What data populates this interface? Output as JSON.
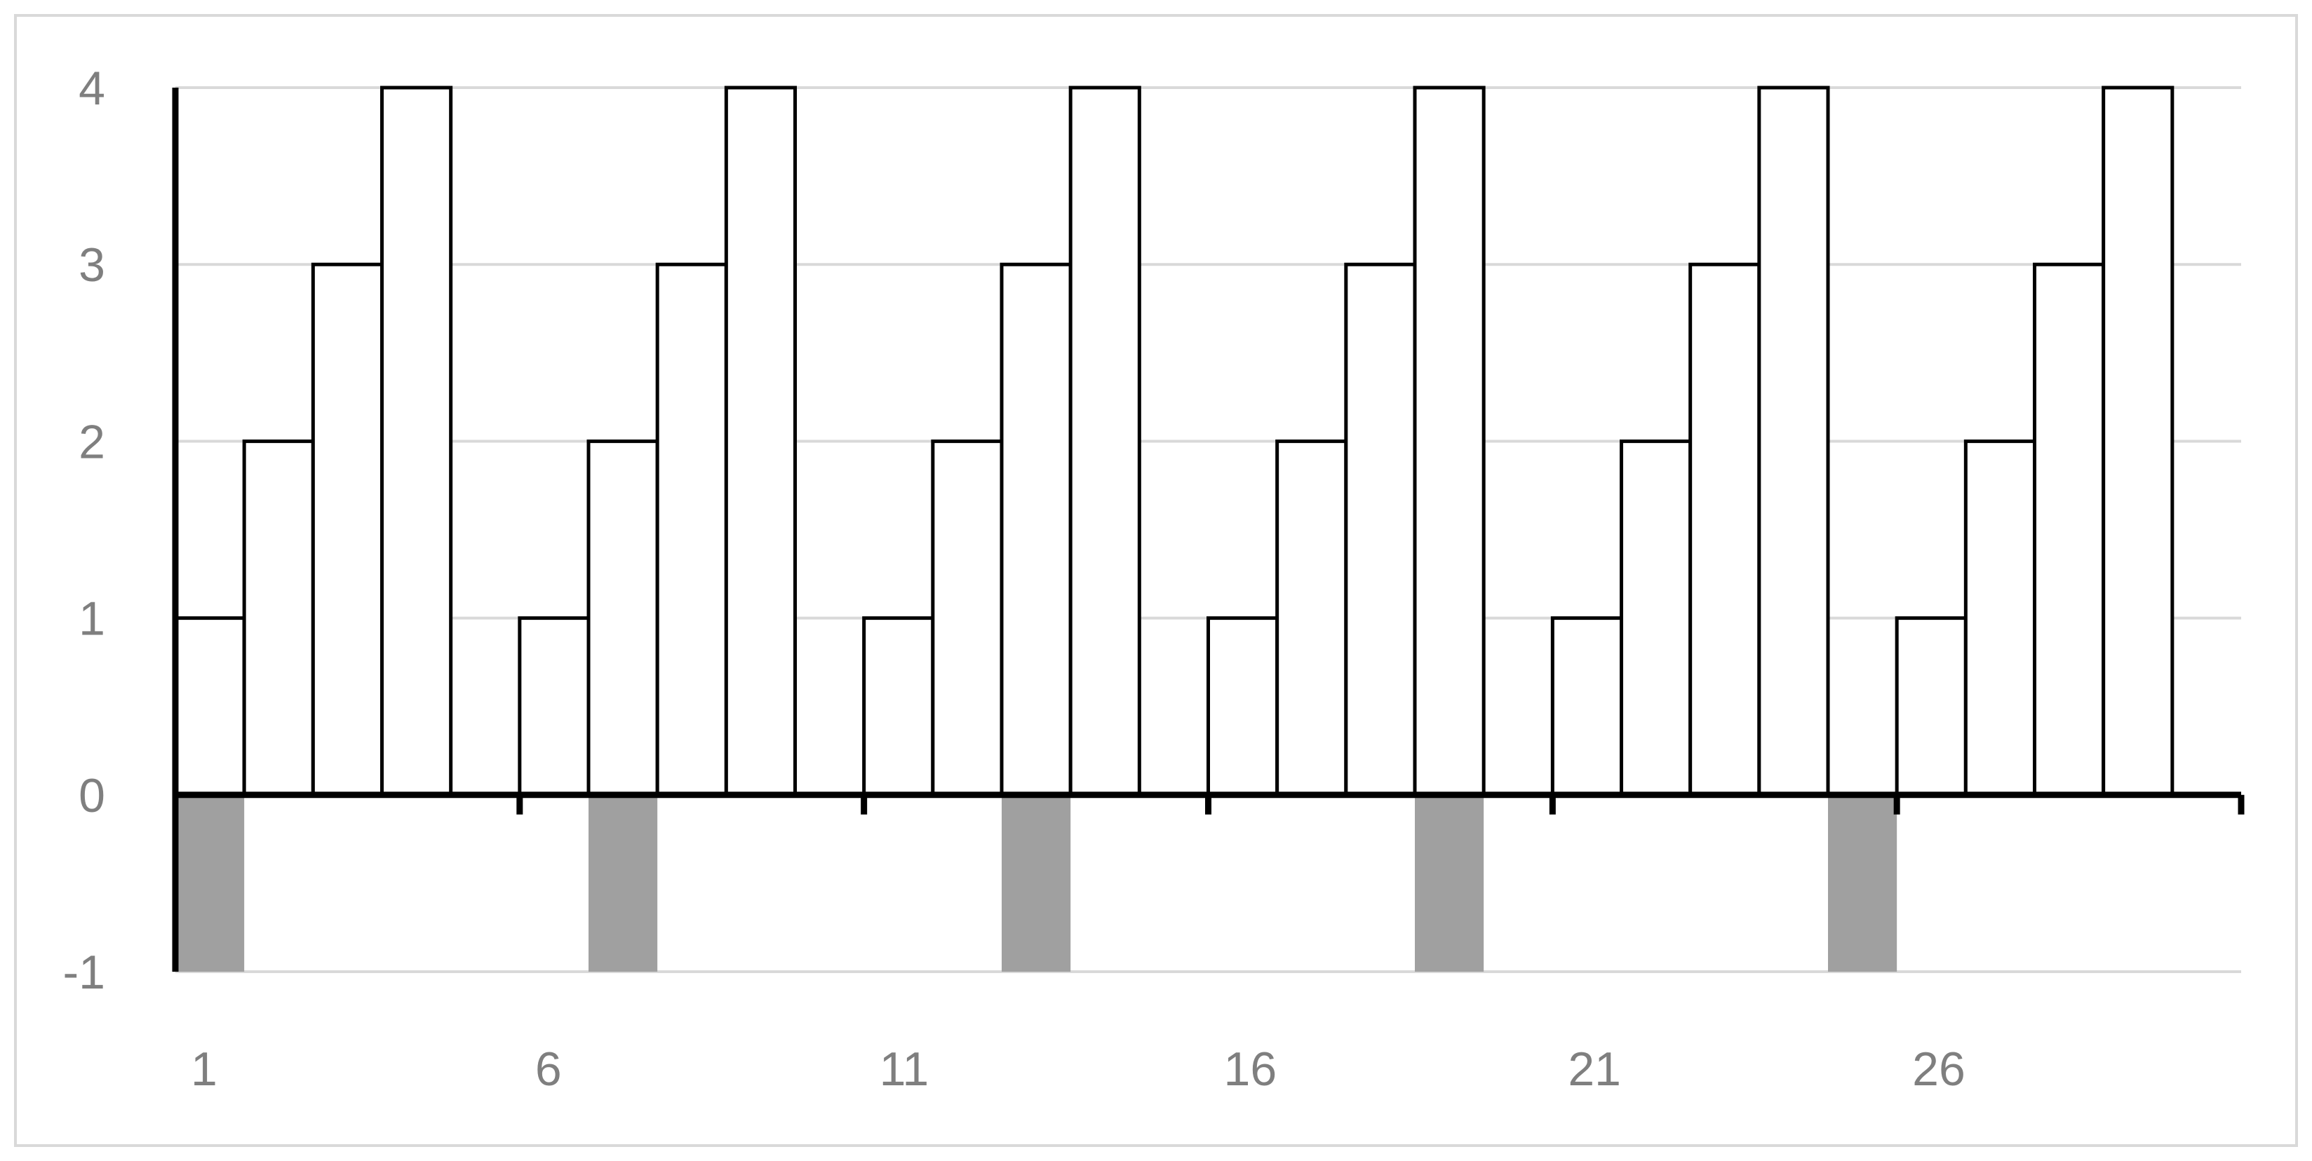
{
  "chart_data": {
    "type": "bar",
    "title": "",
    "xlabel": "",
    "ylabel": "",
    "x": [
      1,
      2,
      3,
      4,
      5,
      6,
      7,
      8,
      9,
      10,
      11,
      12,
      13,
      14,
      15,
      16,
      17,
      18,
      19,
      20,
      21,
      22,
      23,
      24,
      25,
      26,
      27,
      28,
      29,
      30
    ],
    "x_tick_labels": [
      "1",
      "6",
      "11",
      "16",
      "21",
      "26"
    ],
    "x_tick_values": [
      1,
      6,
      11,
      16,
      21,
      26
    ],
    "y_tick_labels": [
      "4",
      "3",
      "2",
      "1",
      "0",
      "-1"
    ],
    "y_tick_values": [
      4,
      3,
      2,
      1,
      0,
      -1
    ],
    "ylim": [
      -1,
      4
    ],
    "grid": true,
    "legend": "none",
    "series": [
      {
        "values": [
          1,
          2,
          3,
          4,
          0,
          1,
          2,
          3,
          4,
          0,
          1,
          2,
          3,
          4,
          0,
          1,
          2,
          3,
          4,
          0,
          1,
          2,
          3,
          4,
          0,
          1,
          2,
          3,
          4,
          0
        ],
        "fill": "#ffffff",
        "stroke": "#000000"
      },
      {
        "values": [
          -1,
          0,
          0,
          0,
          0,
          0,
          -1,
          0,
          0,
          0,
          0,
          0,
          -1,
          0,
          0,
          0,
          0,
          0,
          -1,
          0,
          0,
          0,
          0,
          0,
          -1,
          0,
          0,
          0,
          0,
          0
        ],
        "fill": "#a0a0a0",
        "stroke": "none"
      }
    ],
    "colors": {
      "gridline": "#d9d9d9",
      "axis": "#000000",
      "tick_text": "#7f7f7f",
      "frame": "#d9d9d9"
    }
  }
}
